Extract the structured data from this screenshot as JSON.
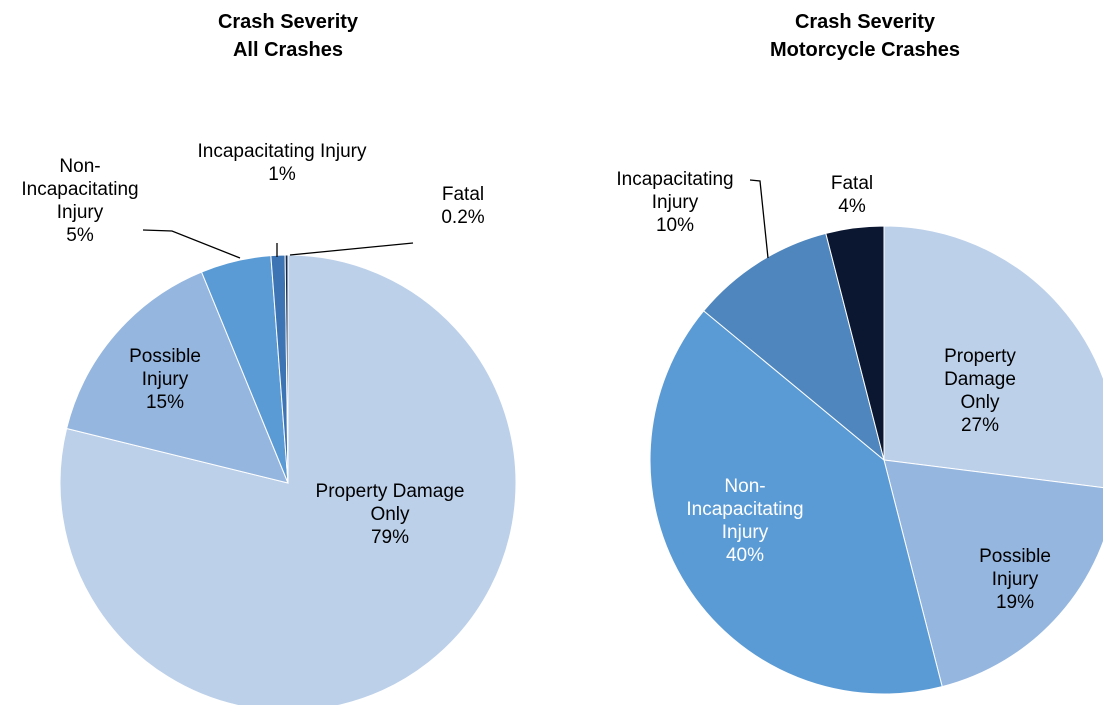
{
  "chart_data": [
    {
      "type": "pie",
      "title": "Crash Severity",
      "subtitle": "All Crashes",
      "categories": [
        "Property Damage Only",
        "Possible Injury",
        "Non-Incapacitating Injury",
        "Incapacitating Injury",
        "Fatal"
      ],
      "values": [
        79,
        15,
        5,
        1,
        0.2
      ],
      "value_labels": [
        "79%",
        "15%",
        "5%",
        "1%",
        "0.2%"
      ],
      "colors": [
        "#bcd0ea",
        "#95b6df",
        "#5b9bd5",
        "#3d74b4",
        "#13284a"
      ]
    },
    {
      "type": "pie",
      "title": "Crash Severity",
      "subtitle": "Motorcycle Crashes",
      "categories": [
        "Property Damage Only",
        "Possible Injury",
        "Non-Incapacitating Injury",
        "Incapacitating Injury",
        "Fatal"
      ],
      "values": [
        27,
        19,
        40,
        10,
        4
      ],
      "value_labels": [
        "27%",
        "19%",
        "40%",
        "10%",
        "4%"
      ],
      "colors": [
        "#bcd0ea",
        "#95b6df",
        "#5b9bd5",
        "#4f86bd",
        "#0b1631"
      ]
    }
  ]
}
